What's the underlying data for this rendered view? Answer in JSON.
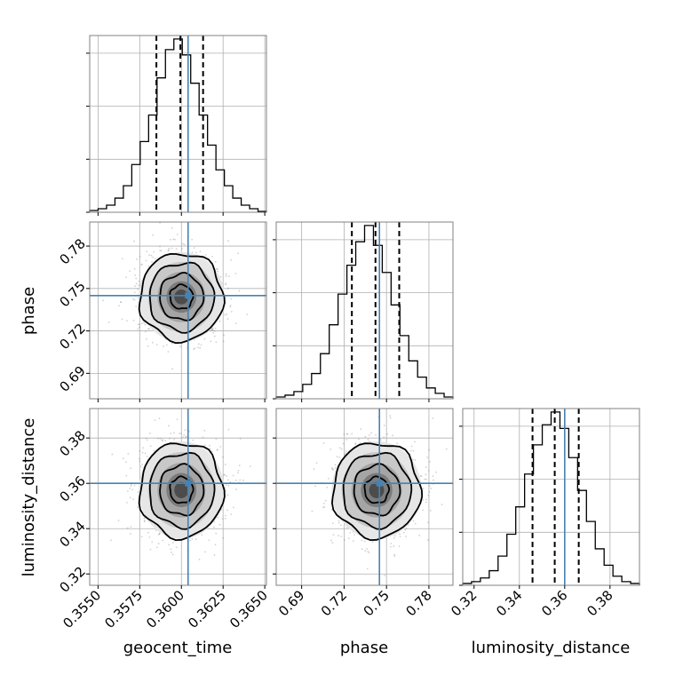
{
  "chart_data": {
    "type": "corner",
    "parameters": [
      "geocent_time",
      "phase",
      "luminosity_distance"
    ],
    "axis_labels": [
      "geocent_time",
      "phase",
      "luminosity_distance"
    ],
    "ranges": [
      [
        0.3545,
        0.3651
      ],
      [
        0.672,
        0.797
      ],
      [
        0.315,
        0.393
      ]
    ],
    "ticks": [
      [
        "0.3550",
        "0.3575",
        "0.3600",
        "0.3625",
        "0.3650"
      ],
      [
        "0.69",
        "0.72",
        "0.75",
        "0.78"
      ],
      [
        "0.32",
        "0.34",
        "0.36",
        "0.38"
      ]
    ],
    "truths": [
      0.3604,
      0.745,
      0.36
    ],
    "truth_color": "#4682b4",
    "quantiles": [
      [
        0.3585,
        0.35994,
        0.3613
      ],
      [
        0.7255,
        0.7422,
        0.759
      ],
      [
        0.3458,
        0.3556,
        0.3662
      ]
    ],
    "histograms": [
      {
        "parameter": "geocent_time",
        "bin_edges_range": [
          0.3545,
          0.3651
        ],
        "counts": [
          1,
          2,
          4,
          8,
          15,
          27,
          40,
          55,
          76,
          92,
          98,
          89,
          73,
          55,
          38,
          24,
          15,
          8,
          4,
          2,
          0.5
        ]
      },
      {
        "parameter": "phase",
        "bin_edges_range": [
          0.672,
          0.797
        ],
        "counts": [
          1,
          2,
          4,
          8,
          14,
          25,
          41,
          58,
          74,
          87,
          96,
          85,
          70,
          52,
          35,
          21,
          12,
          6,
          3,
          1
        ]
      },
      {
        "parameter": "luminosity_distance",
        "bin_edges_range": [
          0.315,
          0.393
        ],
        "counts": [
          1,
          2,
          4,
          8,
          16,
          28,
          43,
          61,
          77,
          88,
          95,
          86,
          70,
          52,
          35,
          20,
          11,
          5,
          2,
          1
        ]
      }
    ],
    "panels_2d": [
      {
        "x": "geocent_time",
        "y": "phase",
        "center": [
          0.36,
          0.744
        ],
        "sigma": [
          0.00125,
          0.0155
        ]
      },
      {
        "x": "geocent_time",
        "y": "luminosity_distance",
        "center": [
          0.36,
          0.357
        ],
        "sigma": [
          0.00125,
          0.0105
        ]
      },
      {
        "x": "phase",
        "y": "luminosity_distance",
        "center": [
          0.743,
          0.357
        ],
        "sigma": [
          0.0155,
          0.0105
        ]
      }
    ],
    "grid": true
  }
}
